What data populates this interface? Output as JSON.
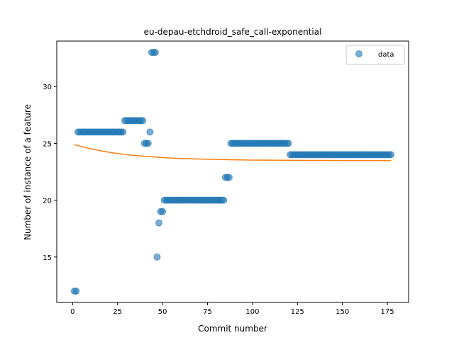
{
  "chart_data": {
    "type": "scatter",
    "title": "eu-depau-etchdroid_safe_call-exponential",
    "xlabel": "Commit number",
    "ylabel": "Number of instance of a feature",
    "xlim": [
      -8.8,
      186.8
    ],
    "ylim": [
      11.0,
      34.0
    ],
    "xticks": [
      0,
      25,
      50,
      75,
      100,
      125,
      150,
      175
    ],
    "yticks": [
      15,
      20,
      25,
      30
    ],
    "grid": false,
    "legend": {
      "placement": "top-right",
      "entries": [
        {
          "label": "data",
          "marker": "circle"
        }
      ]
    },
    "series": [
      {
        "name": "data",
        "kind": "scatter",
        "color": "#1f77b4",
        "x": [
          1,
          2,
          3,
          4,
          5,
          6,
          7,
          8,
          9,
          10,
          11,
          12,
          13,
          14,
          15,
          16,
          17,
          18,
          19,
          20,
          21,
          22,
          23,
          24,
          25,
          26,
          27,
          28,
          29,
          30,
          31,
          32,
          33,
          34,
          35,
          36,
          37,
          38,
          39,
          40,
          41,
          42,
          43,
          44,
          45,
          46,
          47,
          48,
          49,
          50,
          51,
          52,
          53,
          54,
          55,
          56,
          57,
          58,
          59,
          60,
          61,
          62,
          63,
          64,
          65,
          66,
          67,
          68,
          69,
          70,
          71,
          72,
          73,
          74,
          75,
          76,
          77,
          78,
          79,
          80,
          81,
          82,
          83,
          84,
          85,
          86,
          87,
          88,
          89,
          90,
          91,
          92,
          93,
          94,
          95,
          96,
          97,
          98,
          99,
          100,
          101,
          102,
          103,
          104,
          105,
          106,
          107,
          108,
          109,
          110,
          111,
          112,
          113,
          114,
          115,
          116,
          117,
          118,
          119,
          120,
          121,
          122,
          123,
          124,
          125,
          126,
          127,
          128,
          129,
          130,
          131,
          132,
          133,
          134,
          135,
          136,
          137,
          138,
          139,
          140,
          141,
          142,
          143,
          144,
          145,
          146,
          147,
          148,
          149,
          150,
          151,
          152,
          153,
          154,
          155,
          156,
          157,
          158,
          159,
          160,
          161,
          162,
          163,
          164,
          165,
          166,
          167,
          168,
          169,
          170,
          171,
          172,
          173,
          174,
          175,
          176,
          177
        ],
        "y": [
          12,
          12,
          26,
          26,
          26,
          26,
          26,
          26,
          26,
          26,
          26,
          26,
          26,
          26,
          26,
          26,
          26,
          26,
          26,
          26,
          26,
          26,
          26,
          26,
          26,
          26,
          26,
          26,
          27,
          27,
          27,
          27,
          27,
          27,
          27,
          27,
          27,
          27,
          27,
          25,
          25,
          25,
          26,
          33,
          33,
          33,
          15,
          18,
          19,
          19,
          20,
          20,
          20,
          20,
          20,
          20,
          20,
          20,
          20,
          20,
          20,
          20,
          20,
          20,
          20,
          20,
          20,
          20,
          20,
          20,
          20,
          20,
          20,
          20,
          20,
          20,
          20,
          20,
          20,
          20,
          20,
          20,
          20,
          20,
          22,
          22,
          22,
          25,
          25,
          25,
          25,
          25,
          25,
          25,
          25,
          25,
          25,
          25,
          25,
          25,
          25,
          25,
          25,
          25,
          25,
          25,
          25,
          25,
          25,
          25,
          25,
          25,
          25,
          25,
          25,
          25,
          25,
          25,
          25,
          25,
          24,
          24,
          24,
          24,
          24,
          24,
          24,
          24,
          24,
          24,
          24,
          24,
          24,
          24,
          24,
          24,
          24,
          24,
          24,
          24,
          24,
          24,
          24,
          24,
          24,
          24,
          24,
          24,
          24,
          24,
          24,
          24,
          24,
          24,
          24,
          24,
          24,
          24,
          24,
          24,
          24,
          24,
          24,
          24,
          24,
          24,
          24,
          24,
          24,
          24,
          24,
          24,
          24,
          24,
          24,
          24,
          24
        ]
      },
      {
        "kind": "line",
        "color": "#ff7f0e",
        "x": [
          1,
          10,
          20,
          30,
          40,
          50,
          60,
          70,
          80,
          90,
          100,
          110,
          120,
          130,
          140,
          150,
          160,
          170,
          177
        ],
        "y": [
          24.88,
          24.52,
          24.22,
          24.0,
          23.86,
          23.75,
          23.67,
          23.62,
          23.58,
          23.55,
          23.53,
          23.52,
          23.51,
          23.5,
          23.5,
          23.49,
          23.49,
          23.49,
          23.49
        ]
      }
    ]
  }
}
